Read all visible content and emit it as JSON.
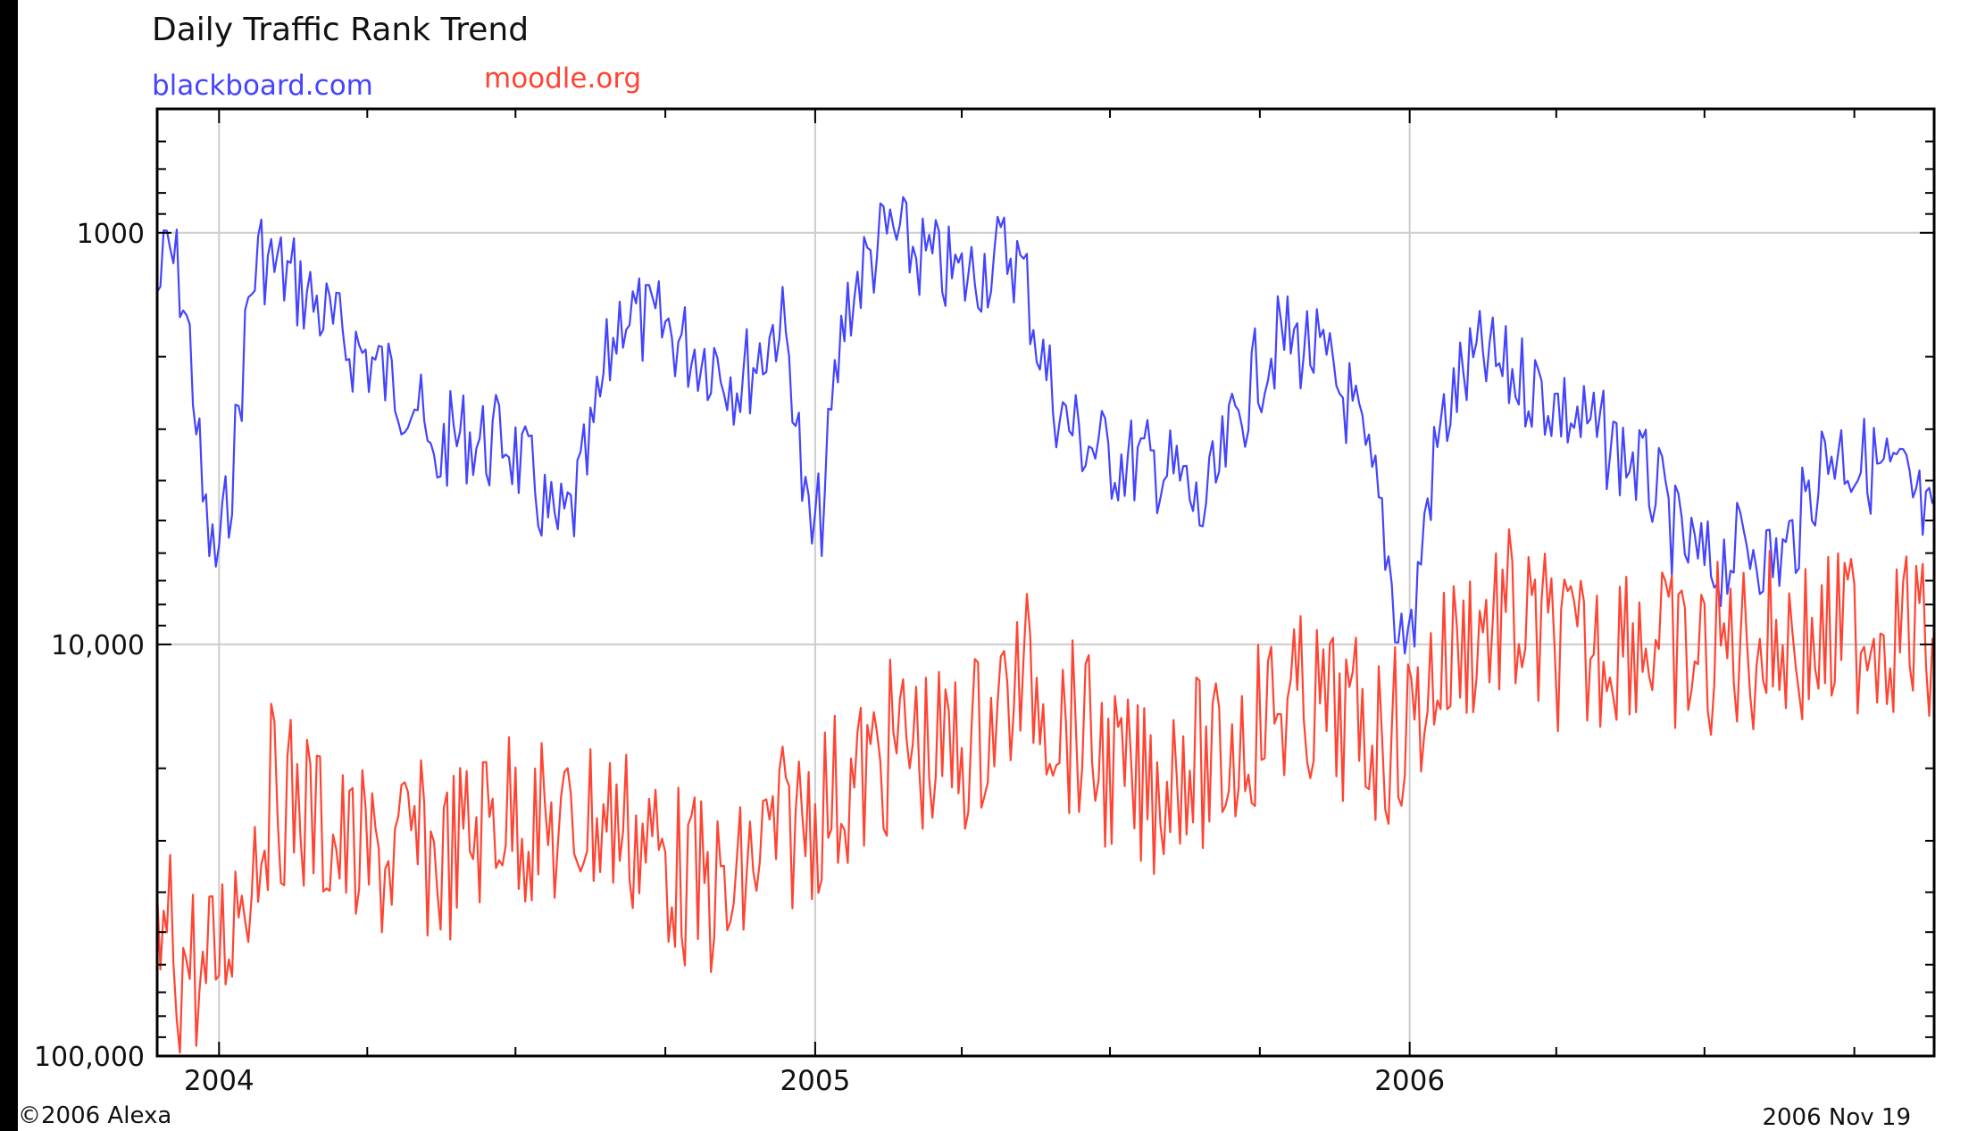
{
  "chart_data": {
    "type": "line",
    "title": "Daily Traffic Rank Trend",
    "y_scale": "log",
    "y_reversed": true,
    "ylim": [
      100000,
      500
    ],
    "y_ticks": [
      1000,
      10000,
      100000
    ],
    "y_tick_labels": [
      "1000",
      "10,000",
      "100,000"
    ],
    "x_range": [
      "2003-11-24",
      "2006-11-19"
    ],
    "x_tick_labels": [
      {
        "date": "2004-01-01",
        "label": "2004"
      },
      {
        "date": "2005-01-01",
        "label": "2005"
      },
      {
        "date": "2006-01-01",
        "label": "2006"
      }
    ],
    "x_minor_ticks": [
      "2004-04-01",
      "2004-07-01",
      "2004-10-01",
      "2005-04-01",
      "2005-07-01",
      "2005-10-01",
      "2006-04-01",
      "2006-07-01",
      "2006-10-01"
    ],
    "grid": true,
    "legend_position": "top-left",
    "end_label": "2006 Nov 19",
    "copyright": "©2006 Alexa",
    "series": [
      {
        "name": "blackboard.com",
        "color": "#4444ff",
        "points": [
          [
            "2003-11-24",
            1400
          ],
          [
            "2003-12-01",
            1100
          ],
          [
            "2003-12-08",
            1300
          ],
          [
            "2003-12-15",
            2000
          ],
          [
            "2003-12-22",
            4500
          ],
          [
            "2003-12-29",
            6500
          ],
          [
            "2004-01-05",
            5000
          ],
          [
            "2004-01-12",
            3000
          ],
          [
            "2004-01-19",
            1500
          ],
          [
            "2004-01-26",
            1100
          ],
          [
            "2004-02-02",
            1200
          ],
          [
            "2004-02-16",
            1300
          ],
          [
            "2004-03-01",
            1500
          ],
          [
            "2004-03-15",
            1800
          ],
          [
            "2004-04-01",
            2000
          ],
          [
            "2004-04-15",
            2300
          ],
          [
            "2004-05-01",
            2500
          ],
          [
            "2004-05-10",
            3800
          ],
          [
            "2004-05-20",
            3200
          ],
          [
            "2004-06-01",
            3100
          ],
          [
            "2004-06-15",
            3300
          ],
          [
            "2004-06-25",
            3100
          ],
          [
            "2004-07-05",
            3700
          ],
          [
            "2004-07-15",
            4300
          ],
          [
            "2004-07-25",
            5400
          ],
          [
            "2004-08-05",
            4800
          ],
          [
            "2004-08-15",
            3500
          ],
          [
            "2004-08-25",
            2200
          ],
          [
            "2004-09-05",
            1500
          ],
          [
            "2004-09-20",
            1700
          ],
          [
            "2004-10-01",
            1700
          ],
          [
            "2004-10-15",
            1900
          ],
          [
            "2004-11-01",
            2000
          ],
          [
            "2004-11-15",
            2300
          ],
          [
            "2004-12-01",
            1900
          ],
          [
            "2004-12-10",
            1600
          ],
          [
            "2004-12-18",
            2200
          ],
          [
            "2004-12-25",
            4500
          ],
          [
            "2004-12-30",
            5600
          ],
          [
            "2005-01-06",
            4600
          ],
          [
            "2005-01-12",
            2600
          ],
          [
            "2005-01-20",
            1500
          ],
          [
            "2005-02-01",
            1200
          ],
          [
            "2005-02-15",
            1000
          ],
          [
            "2005-03-01",
            1100
          ],
          [
            "2005-03-15",
            1200
          ],
          [
            "2005-04-01",
            1300
          ],
          [
            "2005-04-15",
            1200
          ],
          [
            "2005-05-01",
            1100
          ],
          [
            "2005-05-10",
            1300
          ],
          [
            "2005-05-20",
            2000
          ],
          [
            "2005-06-01",
            2800
          ],
          [
            "2005-06-15",
            3200
          ],
          [
            "2005-07-01",
            3500
          ],
          [
            "2005-07-15",
            3600
          ],
          [
            "2005-08-01",
            3700
          ],
          [
            "2005-08-15",
            4100
          ],
          [
            "2005-08-25",
            4900
          ],
          [
            "2005-09-05",
            4000
          ],
          [
            "2005-09-15",
            3000
          ],
          [
            "2005-10-01",
            2100
          ],
          [
            "2005-10-15",
            1800
          ],
          [
            "2005-11-01",
            1900
          ],
          [
            "2005-11-15",
            2300
          ],
          [
            "2005-11-25",
            2600
          ],
          [
            "2005-12-05",
            3600
          ],
          [
            "2005-12-15",
            4900
          ],
          [
            "2005-12-25",
            9000
          ],
          [
            "2006-01-03",
            9500
          ],
          [
            "2006-01-10",
            5000
          ],
          [
            "2006-01-20",
            3000
          ],
          [
            "2006-02-01",
            2300
          ],
          [
            "2006-02-15",
            2000
          ],
          [
            "2006-03-01",
            2200
          ],
          [
            "2006-03-15",
            2300
          ],
          [
            "2006-04-01",
            2600
          ],
          [
            "2006-04-15",
            2900
          ],
          [
            "2006-05-01",
            3200
          ],
          [
            "2006-05-15",
            3500
          ],
          [
            "2006-06-01",
            4200
          ],
          [
            "2006-06-15",
            5600
          ],
          [
            "2006-06-25",
            6200
          ],
          [
            "2006-07-05",
            6600
          ],
          [
            "2006-07-15",
            6100
          ],
          [
            "2006-08-01",
            5600
          ],
          [
            "2006-08-10",
            6300
          ],
          [
            "2006-08-20",
            6000
          ],
          [
            "2006-09-01",
            4700
          ],
          [
            "2006-09-10",
            3600
          ],
          [
            "2006-09-20",
            3300
          ],
          [
            "2006-10-01",
            3600
          ],
          [
            "2006-10-15",
            3700
          ],
          [
            "2006-11-01",
            4100
          ],
          [
            "2006-11-10",
            4700
          ],
          [
            "2006-11-19",
            5600
          ]
        ]
      },
      {
        "name": "moodle.org",
        "color": "#ff4433",
        "points": [
          [
            "2003-11-24",
            60000
          ],
          [
            "2003-12-01",
            48000
          ],
          [
            "2003-12-08",
            62000
          ],
          [
            "2003-12-15",
            56000
          ],
          [
            "2003-12-22",
            72000
          ],
          [
            "2003-12-29",
            58000
          ],
          [
            "2004-01-05",
            50000
          ],
          [
            "2004-01-12",
            40000
          ],
          [
            "2004-01-19",
            35000
          ],
          [
            "2004-01-26",
            28000
          ],
          [
            "2004-02-02",
            23000
          ],
          [
            "2004-02-16",
            24000
          ],
          [
            "2004-03-01",
            27000
          ],
          [
            "2004-03-15",
            31000
          ],
          [
            "2004-04-01",
            34000
          ],
          [
            "2004-04-15",
            33000
          ],
          [
            "2004-05-01",
            31000
          ],
          [
            "2004-05-15",
            34000
          ],
          [
            "2004-06-01",
            30000
          ],
          [
            "2004-06-15",
            26000
          ],
          [
            "2004-07-01",
            25000
          ],
          [
            "2004-07-15",
            28000
          ],
          [
            "2004-08-01",
            29000
          ],
          [
            "2004-08-15",
            26000
          ],
          [
            "2004-09-01",
            27000
          ],
          [
            "2004-09-15",
            29000
          ],
          [
            "2004-10-01",
            33000
          ],
          [
            "2004-10-15",
            38000
          ],
          [
            "2004-11-01",
            40000
          ],
          [
            "2004-11-10",
            45000
          ],
          [
            "2004-11-20",
            36000
          ],
          [
            "2004-12-01",
            31000
          ],
          [
            "2004-12-15",
            28000
          ],
          [
            "2005-01-01",
            25000
          ],
          [
            "2005-01-15",
            23000
          ],
          [
            "2005-02-01",
            21000
          ],
          [
            "2005-02-15",
            18000
          ],
          [
            "2005-03-01",
            17000
          ],
          [
            "2005-03-15",
            19000
          ],
          [
            "2005-04-01",
            18000
          ],
          [
            "2005-04-15",
            16000
          ],
          [
            "2005-05-01",
            13000
          ],
          [
            "2005-05-15",
            12000
          ],
          [
            "2005-06-01",
            15000
          ],
          [
            "2005-06-15",
            17000
          ],
          [
            "2005-07-01",
            20000
          ],
          [
            "2005-07-15",
            23000
          ],
          [
            "2005-08-01",
            22000
          ],
          [
            "2005-08-15",
            18000
          ],
          [
            "2005-09-01",
            21000
          ],
          [
            "2005-09-15",
            18000
          ],
          [
            "2005-10-01",
            15000
          ],
          [
            "2005-10-15",
            14000
          ],
          [
            "2005-11-01",
            14000
          ],
          [
            "2005-11-15",
            15000
          ],
          [
            "2005-12-01",
            16000
          ],
          [
            "2005-12-15",
            17000
          ],
          [
            "2006-01-01",
            16000
          ],
          [
            "2006-01-15",
            12000
          ],
          [
            "2006-02-01",
            10000
          ],
          [
            "2006-02-15",
            9000
          ],
          [
            "2006-03-01",
            8500
          ],
          [
            "2006-03-15",
            9500
          ],
          [
            "2006-04-01",
            10000
          ],
          [
            "2006-04-15",
            11000
          ],
          [
            "2006-05-01",
            10000
          ],
          [
            "2006-05-15",
            9000
          ],
          [
            "2006-06-01",
            10000
          ],
          [
            "2006-06-15",
            11000
          ],
          [
            "2006-07-01",
            11000
          ],
          [
            "2006-07-15",
            10000
          ],
          [
            "2006-08-01",
            10000
          ],
          [
            "2006-08-15",
            9500
          ],
          [
            "2006-09-01",
            10000
          ],
          [
            "2006-09-15",
            10000
          ],
          [
            "2006-10-01",
            9000
          ],
          [
            "2006-10-15",
            9000
          ],
          [
            "2006-11-01",
            9000
          ],
          [
            "2006-11-19",
            10500
          ]
        ]
      }
    ]
  }
}
